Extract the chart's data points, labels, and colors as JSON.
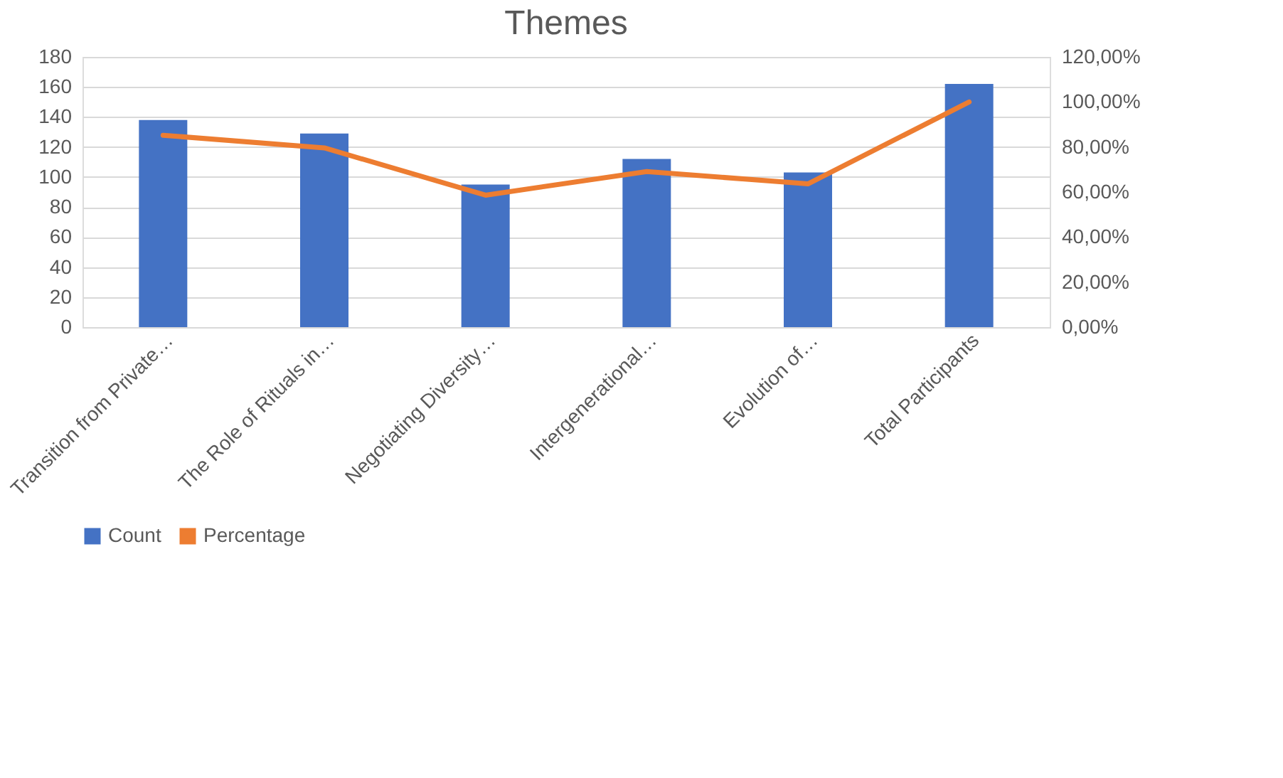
{
  "chart_data": {
    "type": "bar",
    "title": "Themes",
    "categories": [
      "Transition from Private…",
      "The Role of Rituals in…",
      "Negotiating Diversity…",
      "Intergenerational…",
      "Evolution of…",
      "Total Participants"
    ],
    "series": [
      {
        "name": "Count",
        "color": "#4472c4",
        "values": [
          138,
          129,
          95,
          112,
          103,
          162
        ]
      },
      {
        "name": "Percentage",
        "type": "line",
        "axis": "y2",
        "color": "#ed7d31",
        "values": [
          85.2,
          79.6,
          58.6,
          69.1,
          63.6,
          100
        ]
      }
    ],
    "ylim": [
      0,
      180
    ],
    "yticks": [
      0,
      20,
      40,
      60,
      80,
      100,
      120,
      140,
      160,
      180
    ],
    "y2lim": [
      0,
      120
    ],
    "y2ticks": [
      {
        "value": 0,
        "label": "0,00%"
      },
      {
        "value": 20,
        "label": "20,00%"
      },
      {
        "value": 40,
        "label": "40,00%"
      },
      {
        "value": 60,
        "label": "60,00%"
      },
      {
        "value": 80,
        "label": "80,00%"
      },
      {
        "value": 100,
        "label": "100,00%"
      },
      {
        "value": 120,
        "label": "120,00%"
      }
    ],
    "grid": "y",
    "legend": "bottom",
    "marker": "none",
    "line_style": "solid"
  }
}
